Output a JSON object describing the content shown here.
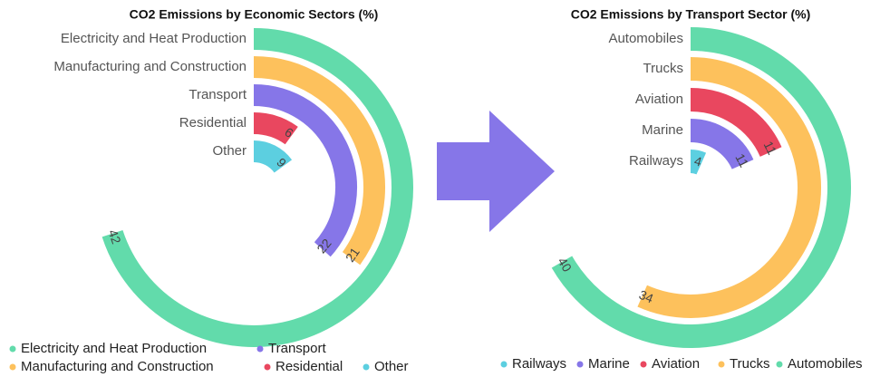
{
  "chart_data": [
    {
      "type": "radialBar",
      "title": "CO2 Emissions by Economic Sectors (%)",
      "categories": [
        "Electricity and Heat Production",
        "Manufacturing and Construction",
        "Transport",
        "Residential",
        "Other"
      ],
      "values": [
        42,
        21,
        22,
        6,
        9
      ],
      "colors": [
        "#62dbab",
        "#fdc15c",
        "#8676e8",
        "#e9475f",
        "#5ccfe0"
      ],
      "ylim": [
        0,
        60
      ]
    },
    {
      "type": "radialBar",
      "title": "CO2 Emissions by Transport Sector (%)",
      "categories": [
        "Automobiles",
        "Trucks",
        "Aviation",
        "Marine",
        "Railways"
      ],
      "values": [
        40,
        34,
        11,
        11,
        4
      ],
      "colors": [
        "#62dbab",
        "#fdc15c",
        "#e9475f",
        "#8676e8",
        "#5ccfe0"
      ],
      "ylim": [
        0,
        60
      ]
    }
  ]
}
